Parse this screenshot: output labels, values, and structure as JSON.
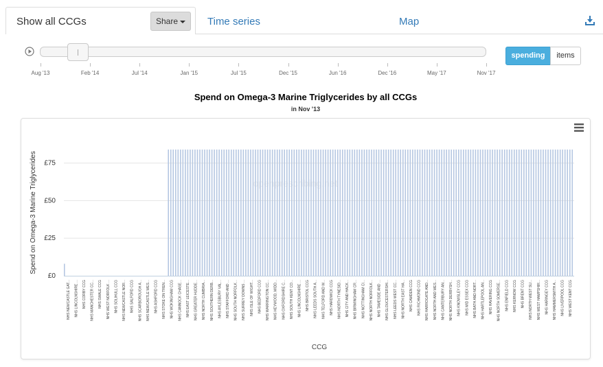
{
  "tabs": {
    "active_label": "Show all CCGs",
    "share_label": "Share",
    "time_series_label": "Time series",
    "map_label": "Map"
  },
  "slider": {
    "ticks": [
      "Aug '13",
      "Feb '14",
      "Jul '14",
      "Jan '15",
      "Jul '15",
      "Dec '15",
      "Jun '16",
      "Dec '16",
      "May '17",
      "Nov '17"
    ],
    "position": 0.064
  },
  "toggle": {
    "spending_label": "spending",
    "items_label": "items"
  },
  "watermark": "openprescribing.net",
  "colors": {
    "accent": "#4aaede",
    "bar": "#b4c6e1",
    "link": "#337ab7"
  },
  "chart_data": {
    "type": "bar",
    "title": "Spend on Omega-3 Marine Triglycerides by all CCGs",
    "subtitle": "in Nov '13",
    "xlabel": "CCG",
    "ylabel": "Spend on Omega-3 Marine Triglycerides",
    "ylim": [
      0,
      84
    ],
    "yticks": [
      "£0",
      "£25",
      "£50",
      "£75"
    ],
    "ytick_values": [
      0,
      25,
      50,
      75
    ],
    "categories": [
      "NHS NEWCASTLE GAT...",
      "NHS LINCOLNSHIRE ...",
      "NHS CORBY CCG",
      "NHS MANCHESTER CC...",
      "NHS SWALE CCG",
      "NHS WEST NORFOLK ...",
      "NHS SOLIHULL CCG",
      "NHS NEWCASTLE NOR...",
      "NHS SALFORD CCG",
      "NHS SCARBOROUGH A...",
      "NHS NEWCASTLE WES...",
      "NHS ASHFORD CCG",
      "NHS STOKE ON TREN...",
      "NHS WOKINGHAM CCG",
      "NHS CANNOCK CHASE...",
      "NHS EAST LEICESTE...",
      "NHS GREATER HUDDE...",
      "NHS NORTH CUMBRIA...",
      "NHS SOUTHERN DERB...",
      "NHS AYLESBURY VAL...",
      "NHS STAFFORD AND ...",
      "NHS SOUTH NORFOLK...",
      "NHS SURREY DOWNS ...",
      "NHS ISLE OF WIGHT...",
      "NHS BEDFORD CCG",
      "NHS WARRINGTON CC...",
      "NHS HEYWOOD, MIDD...",
      "NHS OXFORDSHIRE C...",
      "NHS SOUTH KENT CO...",
      "NHS LINCOLNSHIRE ...",
      "NHS BRISTOL CCG",
      "NHS LEEDS SOUTH A...",
      "NHS TELFORD AND W...",
      "NHS HARDWICK CCG",
      "NHS NORTH TYNESID...",
      "NHS CITY AND HACK...",
      "NHS BIRMINGHAM CR...",
      "NHS NOTTINGHAM CI...",
      "NHS NORTH NORFOLK...",
      "NHS TAMESIDE AND ...",
      "NHS GLOUCESTERSHI...",
      "NHS LEEDS WEST CC...",
      "NHS NORTH EAST HA...",
      "NHS CAMDEN CCG",
      "NHS RICHMOND CCG",
      "NHS HARROGATE AND...",
      "NHS NORTH AND WES...",
      "NHS CANTERBURY AN...",
      "NHS NORTH DERBYSH...",
      "NHS KNOWSLEY CCG",
      "NHS MID ESSEX CCG",
      "NHS BATH AND NORT...",
      "NHS HARTLEPOOL AN...",
      "NHS HAVERING CCG",
      "NHS NORTH SOMERSE...",
      "NHS ENFIELD CCG",
      "NHS KERNOW CCG",
      "NHS BRENT CCG",
      "NHS NORTH WEST SU...",
      "NHS WEST HAMPSHIR...",
      "NHS HARINGEY CCG",
      "NHS HAMMERSMITH A...",
      "NHS LIVERPOOL CCG",
      "NHS WEST KENT CCG"
    ],
    "labeled_values": [
      8,
      0,
      0,
      0,
      0,
      0,
      0,
      0,
      0,
      0,
      0,
      84,
      84,
      84,
      84,
      84,
      84,
      84,
      84,
      84,
      84,
      84,
      84,
      84,
      84,
      84,
      84,
      84,
      84,
      84,
      84,
      84,
      84,
      84,
      84,
      84,
      84,
      84,
      84,
      84,
      84,
      84,
      84,
      84,
      84,
      84,
      84,
      84,
      84,
      84,
      84,
      84,
      84,
      84,
      84,
      84,
      84,
      84,
      84,
      84,
      84,
      84,
      84,
      84
    ],
    "bar_count": 211,
    "zero_bar_count": 43,
    "plateau_value": 84,
    "first_value": 8
  }
}
